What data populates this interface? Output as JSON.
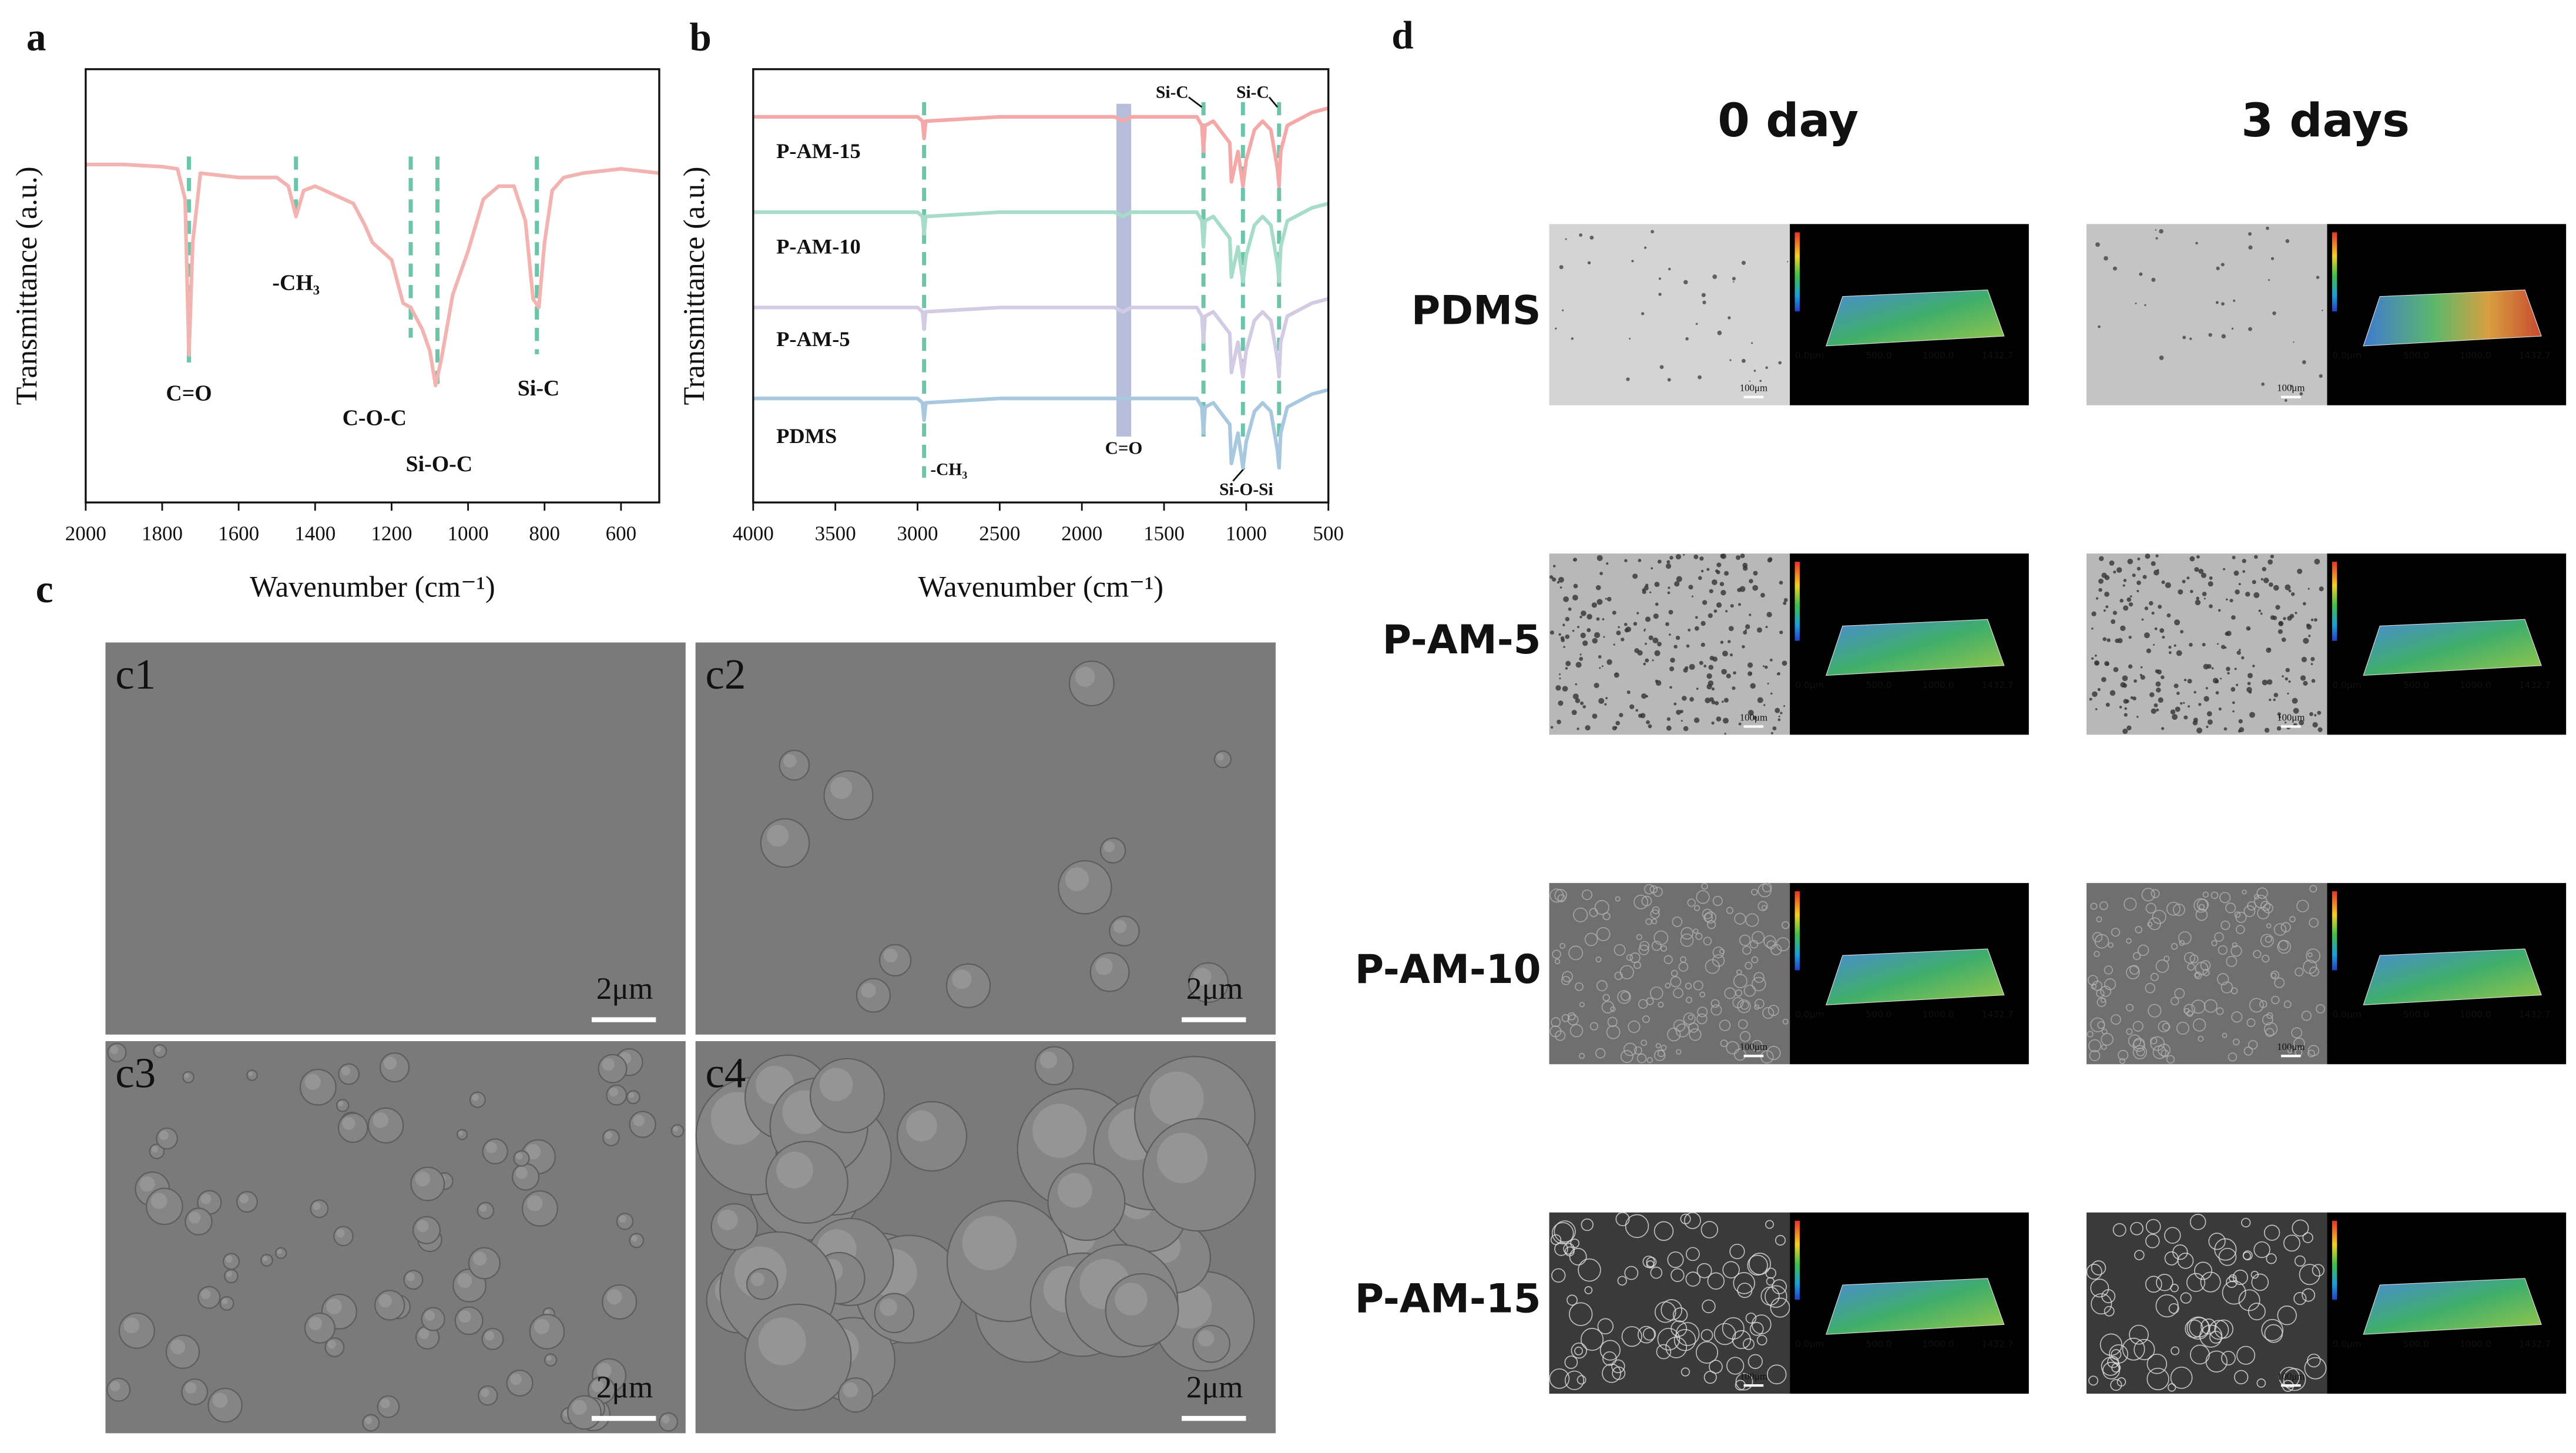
{
  "chart_data": [
    {
      "type": "line",
      "panel_label": "a",
      "x_label": "Wavenumber (cm⁻¹)",
      "y_label": "Transmittance (a.u.)",
      "xlim": [
        2000,
        500
      ],
      "xticks": [
        2000,
        1800,
        1600,
        1400,
        1200,
        1000,
        800,
        600
      ],
      "ylim": [
        0,
        100
      ],
      "x": [
        2000,
        1900,
        1800,
        1760,
        1740,
        1730,
        1720,
        1700,
        1600,
        1500,
        1470,
        1450,
        1430,
        1400,
        1350,
        1300,
        1270,
        1250,
        1200,
        1170,
        1150,
        1120,
        1100,
        1085,
        1070,
        1040,
        1000,
        960,
        920,
        880,
        850,
        830,
        815,
        800,
        780,
        750,
        700,
        600,
        500
      ],
      "series": [
        {
          "color": "#f2b3b1",
          "values": [
            78,
            78,
            77.5,
            77,
            70,
            34,
            60,
            76,
            75,
            75,
            73,
            66,
            72,
            73,
            71,
            69,
            64,
            60,
            56,
            46,
            45,
            40,
            35,
            27,
            33,
            48,
            58,
            70,
            73,
            73,
            65,
            47,
            45,
            60,
            72,
            75,
            76,
            77,
            76
          ]
        }
      ],
      "annotations": [
        {
          "text": "C=O",
          "x": 1730
        },
        {
          "text": "-CH₃",
          "x": 1450
        },
        {
          "text": "C-O-C",
          "x": 1150
        },
        {
          "text": "Si-O-C",
          "x": 1080
        },
        {
          "text": "Si-C",
          "x": 820
        }
      ]
    },
    {
      "type": "line",
      "panel_label": "b",
      "x_label": "Wavenumber (cm⁻¹)",
      "y_label": "Transmittance (a.u.)",
      "xlim": [
        4000,
        500
      ],
      "xticks": [
        4000,
        3500,
        3000,
        2500,
        2000,
        1500,
        1000,
        500
      ],
      "ylim": [
        0,
        100
      ],
      "x": [
        4000,
        3500,
        3000,
        2970,
        2960,
        2950,
        2500,
        2000,
        1800,
        1750,
        1700,
        1500,
        1300,
        1270,
        1260,
        1250,
        1200,
        1100,
        1090,
        1050,
        1020,
        1000,
        950,
        900,
        850,
        810,
        800,
        790,
        750,
        700,
        600,
        500
      ],
      "series": [
        {
          "name": "P-AM-15",
          "color": "#f4a9a8",
          "values": [
            89,
            89,
            89,
            88,
            84,
            88,
            89,
            89,
            89,
            88,
            89,
            89,
            89,
            87,
            81,
            87,
            88,
            83,
            74,
            81,
            73,
            79,
            86,
            88,
            86,
            77,
            73,
            81,
            87,
            88,
            90,
            91
          ]
        },
        {
          "name": "P-AM-10",
          "color": "#a6dcc8",
          "values": [
            67,
            67,
            67,
            66,
            62,
            66,
            67,
            67,
            67,
            66,
            67,
            67,
            67,
            65,
            59,
            65,
            66,
            61,
            52,
            59,
            51,
            57,
            64,
            66,
            64,
            55,
            51,
            59,
            65,
            66,
            68,
            69
          ]
        },
        {
          "name": "P-AM-5",
          "color": "#d3cbe3",
          "values": [
            45,
            45,
            45,
            44,
            40,
            44,
            45,
            45,
            45,
            44,
            45,
            45,
            45,
            43,
            37,
            43,
            44,
            39,
            30,
            37,
            29,
            35,
            42,
            44,
            42,
            33,
            29,
            37,
            43,
            44,
            46,
            47
          ]
        },
        {
          "name": "PDMS",
          "color": "#a8c8e0",
          "values": [
            24,
            24,
            24,
            23,
            19,
            23,
            24,
            24,
            24,
            24,
            24,
            24,
            24,
            22,
            16,
            22,
            23,
            18,
            9,
            16,
            8,
            14,
            21,
            23,
            21,
            12,
            8,
            16,
            22,
            23,
            25,
            26
          ]
        }
      ],
      "annotations": [
        {
          "text": "-CH₃",
          "x": 2960
        },
        {
          "text": "Si-C",
          "x": 1260
        },
        {
          "text": "Si-C",
          "x": 800
        },
        {
          "text": "Si-O-Si",
          "x": 1020
        }
      ],
      "band": {
        "range": [
          1790,
          1700
        ],
        "label": "C=O"
      }
    }
  ],
  "panel_c": {
    "panel_label": "c",
    "images": [
      "c1",
      "c2",
      "c3",
      "c4"
    ],
    "scale_bar": "2μm"
  },
  "panel_d": {
    "panel_label": "d",
    "columns": [
      "0 day",
      "3 days"
    ],
    "rows": [
      "PDMS",
      "P-AM-5",
      "P-AM-10",
      "P-AM-15"
    ],
    "scale_bar": "100μm",
    "profile_labels": [
      "0.0μm",
      "500.0",
      "1000.0",
      "1432.7"
    ]
  }
}
